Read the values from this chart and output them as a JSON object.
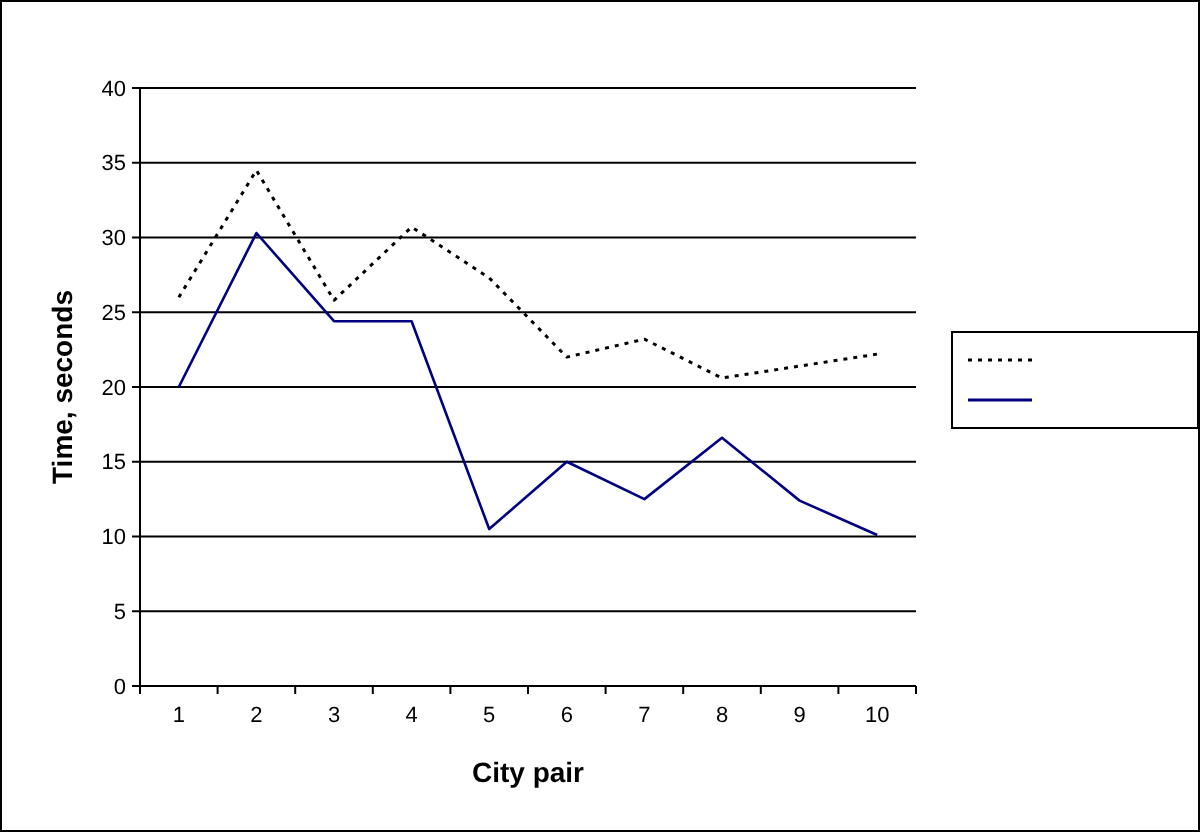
{
  "chart_data": {
    "type": "line",
    "xlabel": "City pair",
    "ylabel": "Time, seconds",
    "categories": [
      "1",
      "2",
      "3",
      "4",
      "5",
      "6",
      "7",
      "8",
      "9",
      "10"
    ],
    "series": [
      {
        "color": "#000000",
        "line_style": "dotted",
        "values": [
          26,
          34.5,
          25.8,
          30.7,
          27.3,
          22,
          23.2,
          20.6,
          21.4,
          22.2
        ]
      },
      {
        "color": "#000080",
        "line_style": "solid",
        "values": [
          20,
          30.3,
          24.4,
          24.4,
          10.5,
          15,
          12.5,
          16.6,
          12.4,
          10.1
        ]
      }
    ],
    "ylim": [
      0,
      40
    ],
    "yticks": [
      0,
      5,
      10,
      15,
      20,
      25,
      30,
      35,
      40
    ],
    "grid": "y",
    "marker": "none"
  }
}
